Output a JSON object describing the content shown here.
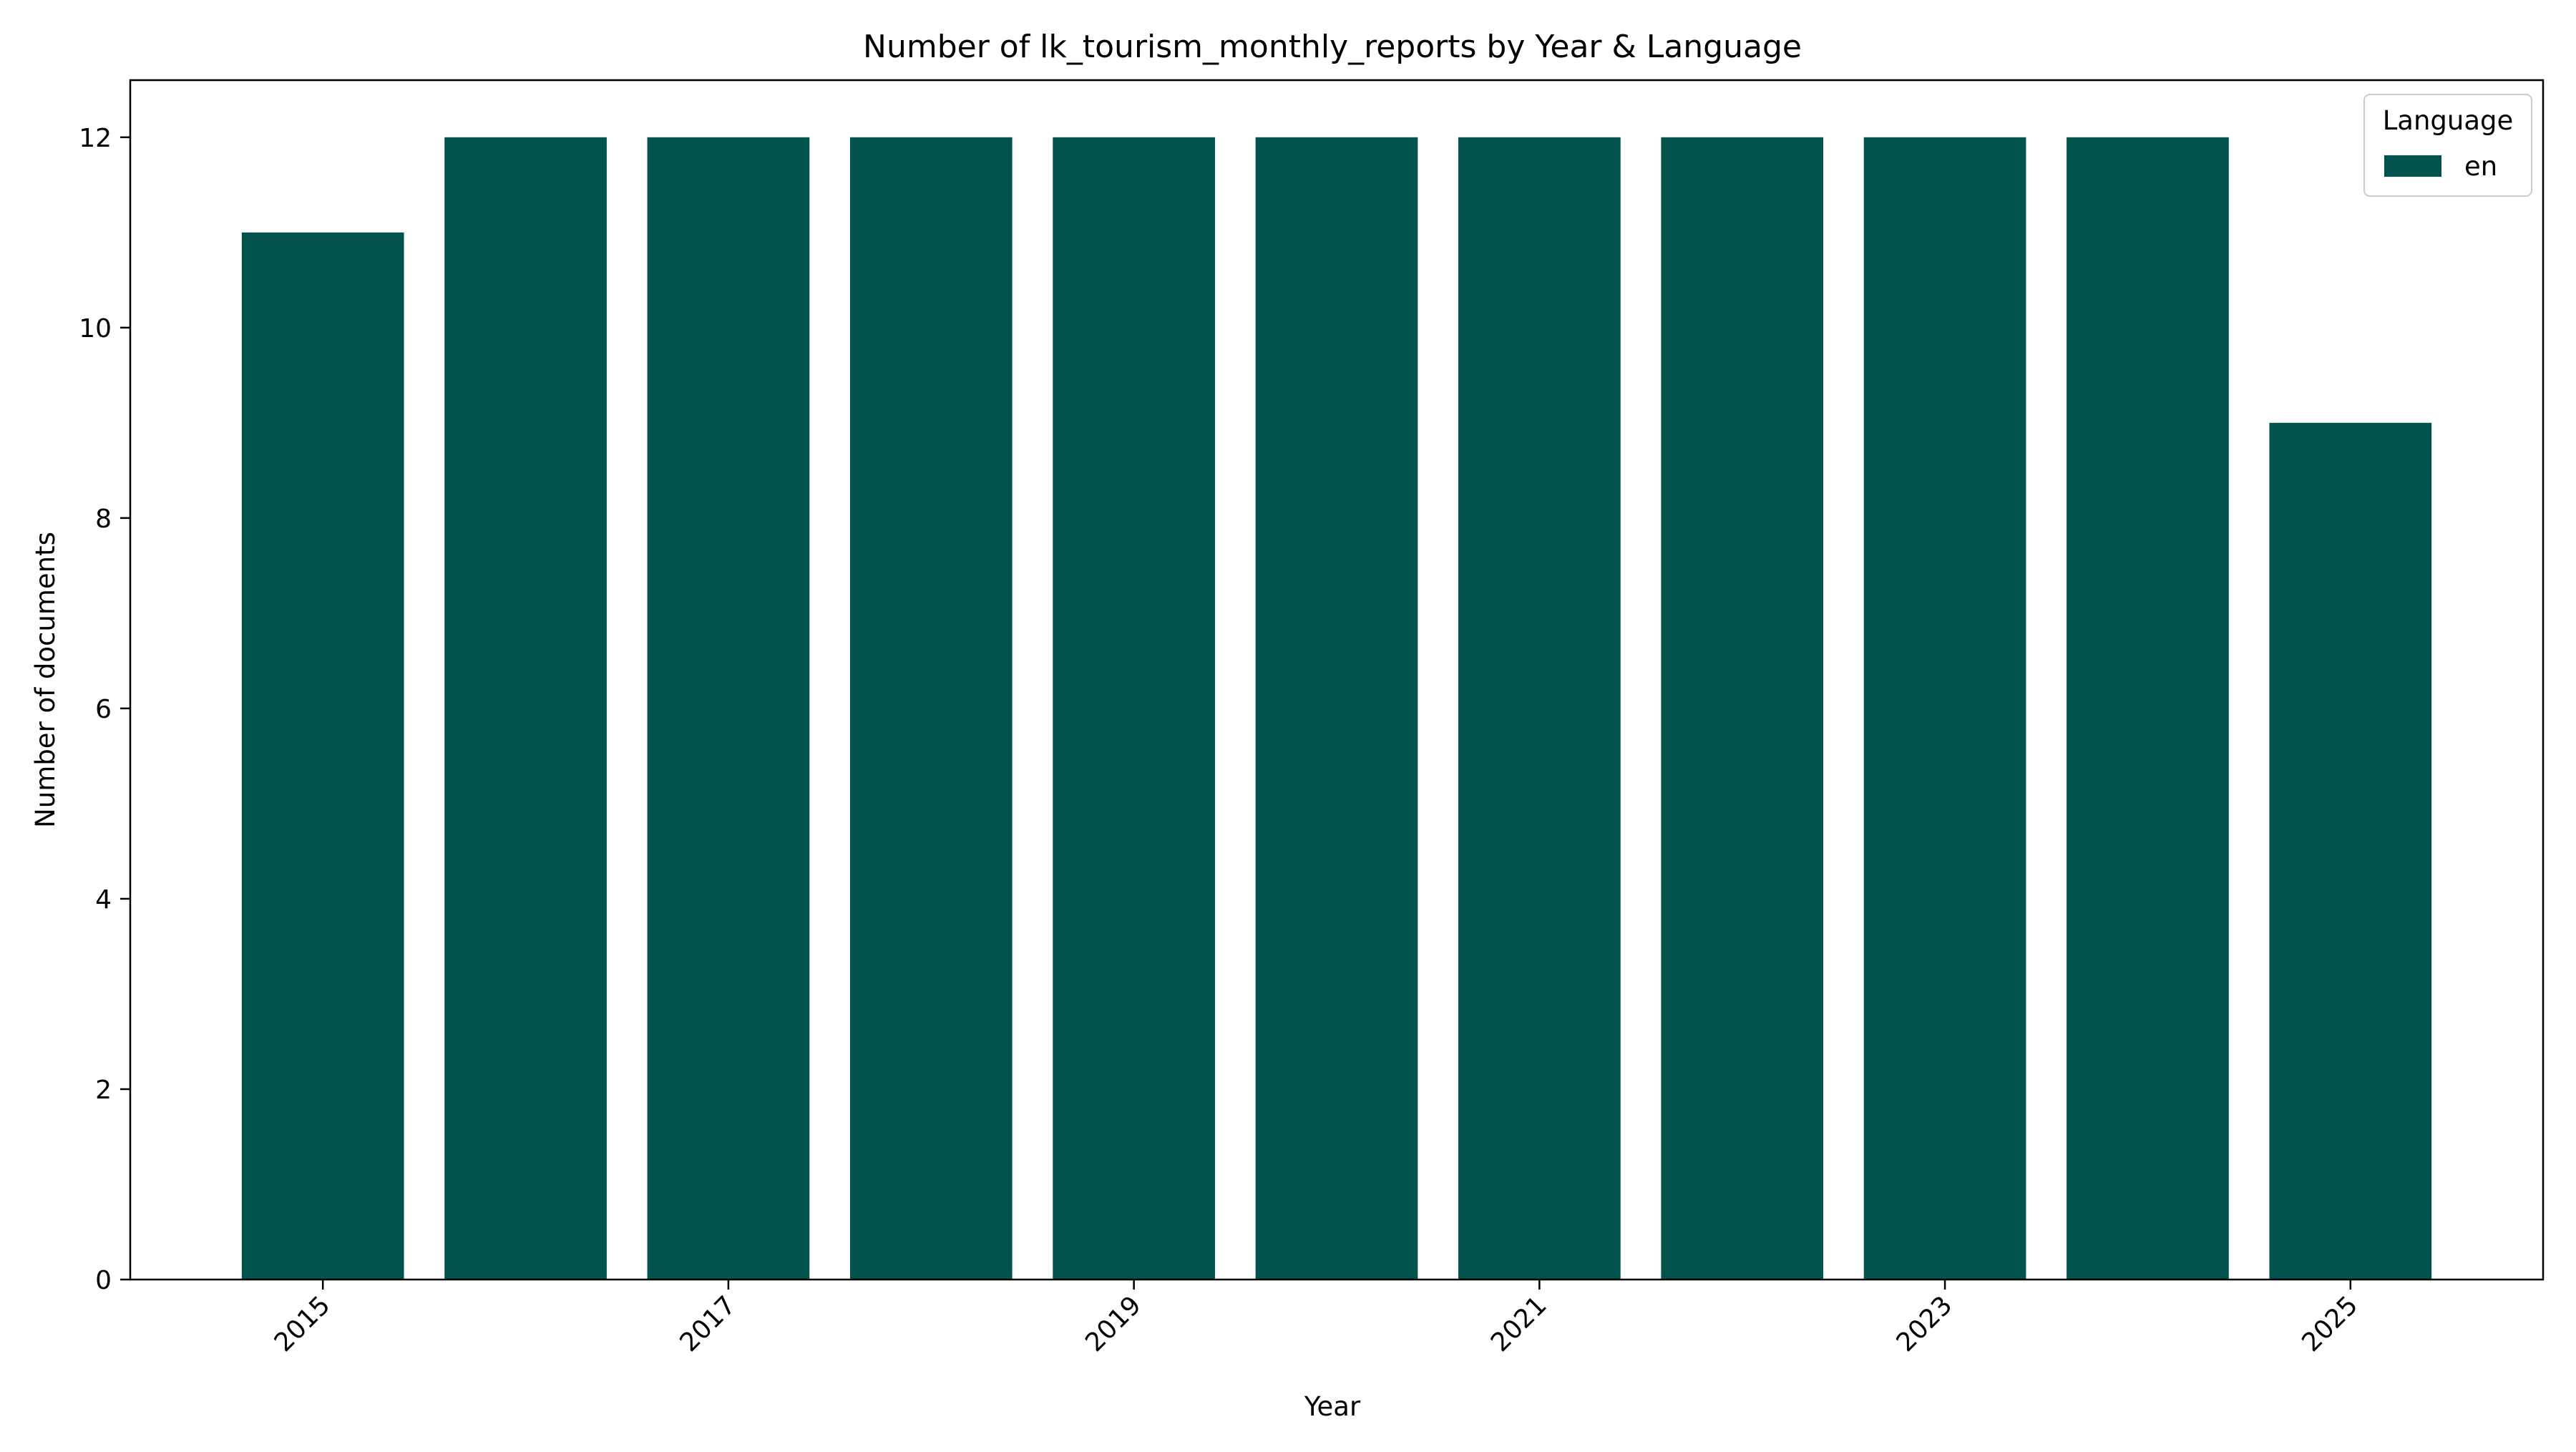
{
  "chart_data": {
    "type": "bar",
    "title": "Number of lk_tourism_monthly_reports by Year & Language",
    "xlabel": "Year",
    "ylabel": "Number of documents",
    "categories": [
      2015,
      2016,
      2017,
      2018,
      2019,
      2020,
      2021,
      2022,
      2023,
      2024,
      2025
    ],
    "x_tick_labels": [
      "2015",
      "2017",
      "2019",
      "2021",
      "2023",
      "2025"
    ],
    "y_ticks": [
      0,
      2,
      4,
      6,
      8,
      10,
      12
    ],
    "ylim": [
      0,
      12.6
    ],
    "xlim": [
      2014.05,
      2025.95
    ],
    "grid": false,
    "legend_position": "top-right",
    "legend_title": "Language",
    "series": [
      {
        "name": "en",
        "color": "#02524e",
        "values": [
          11,
          12,
          12,
          12,
          12,
          12,
          12,
          12,
          12,
          12,
          9
        ]
      }
    ]
  }
}
